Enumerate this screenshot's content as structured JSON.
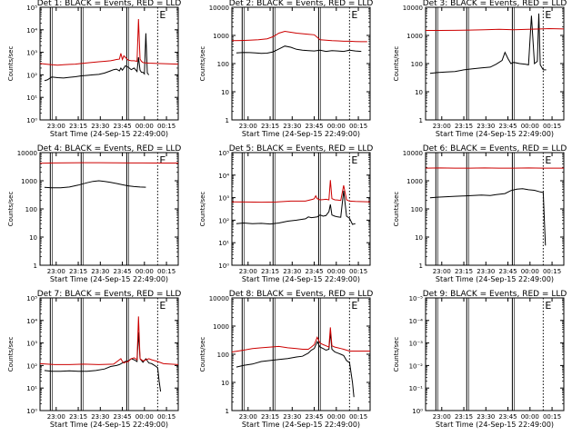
{
  "chart_data": [
    {
      "type": "line",
      "title": "Det 1: BLACK = Events, RED = LLD",
      "xlabel": "Start Time (24-Sep-15 22:49:00)",
      "ylabel": "Counts/sec",
      "yscale": "log",
      "ylim": [
        1,
        100000
      ],
      "yticks": [
        "10⁰",
        "10¹",
        "10²",
        "10³",
        "10⁴",
        "10⁵"
      ],
      "xticks": [
        "23:00",
        "23:15",
        "23:30",
        "23:45",
        "00:00",
        "00:15"
      ],
      "xlim_min": [
        0,
        94
      ],
      "xticks_min": [
        11,
        26,
        41,
        56,
        71,
        86
      ],
      "vlines_min": [
        7,
        28,
        59,
        80
      ],
      "vlines_style": [
        "solid",
        "solid",
        "solid",
        "dotted"
      ],
      "markers": [
        {
          "label": "E",
          "x_min": 80
        }
      ],
      "series": [
        {
          "color": "#000000",
          "x_min": [
            3,
            5,
            8,
            12,
            16,
            20,
            24,
            28,
            32,
            36,
            40,
            44,
            48,
            50,
            52,
            54,
            55,
            56,
            57,
            58,
            60,
            62,
            64,
            66,
            67,
            68,
            69,
            70,
            71,
            72,
            73,
            74
          ],
          "y": [
            55,
            60,
            80,
            75,
            72,
            78,
            82,
            90,
            95,
            100,
            105,
            120,
            150,
            170,
            180,
            150,
            200,
            160,
            200,
            250,
            220,
            170,
            200,
            140,
            600,
            160,
            130,
            130,
            110,
            7000,
            120,
            100
          ]
        },
        {
          "color": "#cc0000",
          "x_min": [
            0,
            4,
            8,
            12,
            16,
            20,
            24,
            28,
            32,
            36,
            40,
            44,
            48,
            50,
            52,
            54,
            55,
            56,
            57,
            58,
            60,
            62,
            64,
            66,
            67,
            68,
            69,
            70,
            72,
            74,
            80,
            94
          ],
          "y": [
            320,
            300,
            280,
            270,
            280,
            290,
            300,
            320,
            340,
            360,
            380,
            400,
            420,
            450,
            480,
            500,
            900,
            480,
            700,
            600,
            450,
            420,
            420,
            400,
            30000,
            500,
            400,
            350,
            340,
            330,
            320,
            300
          ]
        }
      ]
    },
    {
      "type": "line",
      "title": "Det 2: BLACK = Events, RED = LLD",
      "xlabel": "",
      "ylabel": "Counts/sec",
      "yscale": "log",
      "ylim": [
        1,
        10000
      ],
      "yticks": [
        "1",
        "10",
        "100",
        "1000",
        "10000"
      ],
      "xticks": [],
      "xlim_min": [
        0,
        94
      ],
      "xticks_min": [],
      "vlines_min": [],
      "vlines_style": [],
      "markers": [],
      "series": [
        {
          "color": "#000000",
          "x_min": [
            3,
            8,
            12,
            16,
            20,
            24,
            28,
            32,
            36,
            40,
            44,
            48,
            52,
            56,
            60,
            64,
            68,
            72,
            76,
            80,
            84,
            88
          ],
          "y": [
            240,
            250,
            245,
            240,
            230,
            235,
            260,
            330,
            420,
            380,
            320,
            300,
            290,
            280,
            300,
            270,
            290,
            280,
            270,
            300,
            280,
            270
          ]
        },
        {
          "color": "#cc0000",
          "x_min": [
            0,
            6,
            12,
            18,
            24,
            28,
            32,
            36,
            40,
            44,
            48,
            52,
            56,
            60,
            64,
            68,
            72,
            76,
            80,
            84,
            88,
            92
          ],
          "y": [
            650,
            660,
            680,
            700,
            760,
            900,
            1200,
            1400,
            1300,
            1200,
            1150,
            1100,
            1050,
            700,
            680,
            650,
            640,
            620,
            620,
            610,
            600,
            600
          ]
        }
      ]
    },
    {
      "type": "line",
      "title": "Det 3: BLACK = Events, RED = LLD",
      "xlabel": "",
      "ylabel": "",
      "yscale": "log",
      "ylim": [
        1,
        10000
      ],
      "yticks": [
        "1",
        "10",
        "100",
        "1000",
        "10000"
      ],
      "xticks": [],
      "xlim_min": [
        0,
        94
      ],
      "xticks_min": [],
      "vlines_min": [],
      "vlines_style": [],
      "markers": [],
      "series": [
        {
          "color": "#000000",
          "x_min": [
            3,
            8,
            14,
            20,
            26,
            32,
            38,
            44,
            48,
            52,
            54,
            56,
            58,
            60,
            64,
            68,
            70,
            72,
            74,
            76,
            77,
            78,
            80,
            82
          ],
          "y": [
            45,
            48,
            50,
            52,
            60,
            65,
            70,
            75,
            95,
            130,
            250,
            150,
            100,
            110,
            100,
            95,
            90,
            5000,
            100,
            120,
            6000,
            90,
            60,
            60
          ]
        },
        {
          "color": "#cc0000",
          "x_min": [
            0,
            10,
            20,
            30,
            40,
            50,
            60,
            70,
            78,
            84,
            94
          ],
          "y": [
            1500,
            1500,
            1520,
            1550,
            1600,
            1650,
            1600,
            1650,
            1700,
            1750,
            1700
          ]
        }
      ]
    },
    {
      "type": "line",
      "title": "Det 4: BLACK = Events, RED = LLD",
      "xlabel": "",
      "ylabel": "",
      "yscale": "log",
      "ylim": [
        1,
        10000
      ],
      "yticks": [
        "1",
        "10",
        "100",
        "1000",
        "10000"
      ],
      "xticks": [],
      "xlim_min": [
        0,
        94
      ],
      "xticks_min": [],
      "vlines_min": [],
      "vlines_style": [],
      "markers": [],
      "series": [
        {
          "color": "#000000",
          "x_min": [
            3,
            8,
            14,
            20,
            26,
            32,
            36,
            40,
            44,
            48,
            52,
            56,
            60,
            64,
            68,
            72
          ],
          "y": [
            580,
            560,
            560,
            600,
            700,
            850,
            950,
            1000,
            950,
            880,
            800,
            720,
            660,
            620,
            600,
            590
          ]
        },
        {
          "color": "#cc0000",
          "x_min": [
            0,
            10,
            20,
            30,
            40,
            50,
            60,
            70,
            80,
            94
          ],
          "y": [
            4200,
            4300,
            4350,
            4400,
            4400,
            4350,
            4300,
            4300,
            4250,
            4250
          ]
        }
      ]
    },
    {
      "type": "line",
      "title": "Det 5: BLACK = Events, RED = LLD",
      "xlabel": "",
      "ylabel": "",
      "yscale": "log",
      "ylim": [
        1,
        100000
      ],
      "yticks": [
        "10⁰",
        "10¹",
        "10²",
        "10³",
        "10⁴",
        "10⁵"
      ],
      "xticks": [],
      "xlim_min": [
        0,
        94
      ],
      "xticks_min": [],
      "vlines_min": [],
      "vlines_style": [],
      "markers": [],
      "series": [
        {
          "color": "#000000",
          "x_min": [
            3,
            8,
            14,
            20,
            26,
            32,
            38,
            44,
            48,
            50,
            52,
            54,
            56,
            58,
            60,
            62,
            64,
            66,
            67,
            68,
            70,
            72,
            74,
            76,
            78,
            80,
            82,
            84
          ],
          "y": [
            70,
            75,
            70,
            72,
            68,
            75,
            90,
            100,
            110,
            115,
            140,
            130,
            135,
            140,
            170,
            150,
            160,
            240,
            500,
            170,
            150,
            140,
            135,
            2000,
            150,
            120,
            65,
            70
          ]
        },
        {
          "color": "#cc0000",
          "x_min": [
            0,
            10,
            20,
            30,
            40,
            50,
            55,
            56,
            57,
            58,
            60,
            62,
            64,
            66,
            67,
            68,
            70,
            72,
            74,
            76,
            78,
            80,
            84,
            94
          ],
          "y": [
            650,
            640,
            630,
            640,
            700,
            700,
            850,
            900,
            1200,
            900,
            800,
            820,
            850,
            800,
            6000,
            900,
            800,
            780,
            750,
            3500,
            800,
            700,
            680,
            650
          ]
        }
      ]
    },
    {
      "type": "line",
      "title": "Det 6: BLACK = Events, RED = LLD",
      "xlabel": "",
      "ylabel": "",
      "yscale": "log",
      "ylim": [
        1,
        10000
      ],
      "yticks": [
        "1",
        "10",
        "100",
        "1000",
        "10000"
      ],
      "xticks": [],
      "xlim_min": [
        0,
        94
      ],
      "xticks_min": [],
      "vlines_min": [],
      "vlines_style": [],
      "markers": [],
      "series": [
        {
          "color": "#000000",
          "x_min": [
            3,
            8,
            14,
            20,
            26,
            32,
            38,
            44,
            48,
            50,
            54,
            58,
            62,
            66,
            70,
            74,
            78,
            80,
            81,
            81.5
          ],
          "y": [
            250,
            260,
            270,
            280,
            290,
            300,
            310,
            300,
            320,
            330,
            350,
            450,
            500,
            520,
            480,
            460,
            400,
            380,
            20,
            5
          ]
        },
        {
          "color": "#cc0000",
          "x_min": [
            0,
            10,
            20,
            30,
            40,
            50,
            60,
            70,
            80,
            94
          ],
          "y": [
            2800,
            2850,
            2800,
            2800,
            2850,
            2800,
            2800,
            2850,
            2800,
            2800
          ]
        }
      ]
    },
    {
      "type": "line",
      "title": "Det 7: BLACK = Events, RED = LLD",
      "xlabel": "",
      "ylabel": "",
      "yscale": "log",
      "ylim": [
        1,
        100000
      ],
      "yticks": [
        "10⁰",
        "10¹",
        "10²",
        "10³",
        "10⁴",
        "10⁵"
      ],
      "xticks": [],
      "xlim_min": [
        0,
        94
      ],
      "xticks_min": [],
      "vlines_min": [],
      "vlines_style": [],
      "markers": [],
      "series": [
        {
          "color": "#000000",
          "x_min": [
            3,
            8,
            14,
            20,
            26,
            32,
            38,
            44,
            48,
            52,
            54,
            56,
            58,
            60,
            62,
            64,
            66,
            67,
            68,
            70,
            72,
            74,
            76,
            78,
            80,
            81,
            82
          ],
          "y": [
            60,
            55,
            55,
            58,
            55,
            55,
            60,
            70,
            90,
            100,
            110,
            130,
            150,
            160,
            200,
            180,
            150,
            3000,
            200,
            140,
            200,
            130,
            120,
            100,
            80,
            20,
            7
          ]
        },
        {
          "color": "#cc0000",
          "x_min": [
            0,
            10,
            20,
            30,
            40,
            50,
            55,
            56,
            57,
            58,
            60,
            62,
            64,
            66,
            67,
            68,
            70,
            72,
            74,
            76,
            80,
            84,
            94
          ],
          "y": [
            120,
            110,
            110,
            115,
            110,
            115,
            200,
            150,
            130,
            140,
            150,
            200,
            220,
            180,
            15000,
            200,
            160,
            180,
            200,
            180,
            150,
            120,
            110
          ]
        }
      ]
    },
    {
      "type": "line",
      "title": "Det 8: BLACK = Events, RED = LLD",
      "xlabel": "",
      "ylabel": "",
      "yscale": "log",
      "ylim": [
        1,
        10000
      ],
      "yticks": [
        "1",
        "10",
        "100",
        "1000",
        "10000"
      ],
      "xticks": [],
      "xlim_min": [
        0,
        94
      ],
      "xticks_min": [],
      "vlines_min": [],
      "vlines_style": [],
      "markers": [],
      "series": [
        {
          "color": "#000000",
          "x_min": [
            3,
            8,
            14,
            20,
            26,
            32,
            38,
            44,
            48,
            52,
            54,
            56,
            58,
            60,
            62,
            64,
            66,
            67,
            68,
            70,
            72,
            74,
            76,
            78,
            80,
            82,
            83
          ],
          "y": [
            35,
            40,
            45,
            55,
            60,
            65,
            70,
            80,
            85,
            110,
            140,
            160,
            280,
            180,
            160,
            140,
            150,
            600,
            150,
            120,
            110,
            100,
            90,
            60,
            50,
            10,
            3
          ]
        },
        {
          "color": "#cc0000",
          "x_min": [
            0,
            8,
            14,
            20,
            26,
            32,
            38,
            44,
            48,
            52,
            54,
            56,
            58,
            60,
            62,
            64,
            66,
            67,
            68,
            70,
            72,
            74,
            76,
            78,
            80,
            84,
            94
          ],
          "y": [
            120,
            140,
            160,
            170,
            180,
            190,
            170,
            160,
            150,
            150,
            180,
            220,
            400,
            250,
            220,
            200,
            180,
            900,
            200,
            180,
            170,
            160,
            150,
            140,
            130,
            130,
            130
          ]
        }
      ]
    },
    {
      "type": "line",
      "title": "Det 9: BLACK = Events, RED = LLD",
      "xlabel": "",
      "ylabel": "",
      "yscale": "log",
      "ylim": [
        1,
        10
      ],
      "yticks": [
        "10⁰",
        "10⁻¹",
        "10⁻²",
        "10⁻³",
        "10⁻⁴",
        "10⁻⁵"
      ],
      "xticks": [],
      "xlim_min": [
        0,
        94
      ],
      "xticks_min": [],
      "vlines_min": [],
      "vlines_style": [],
      "markers": [],
      "series": []
    }
  ]
}
